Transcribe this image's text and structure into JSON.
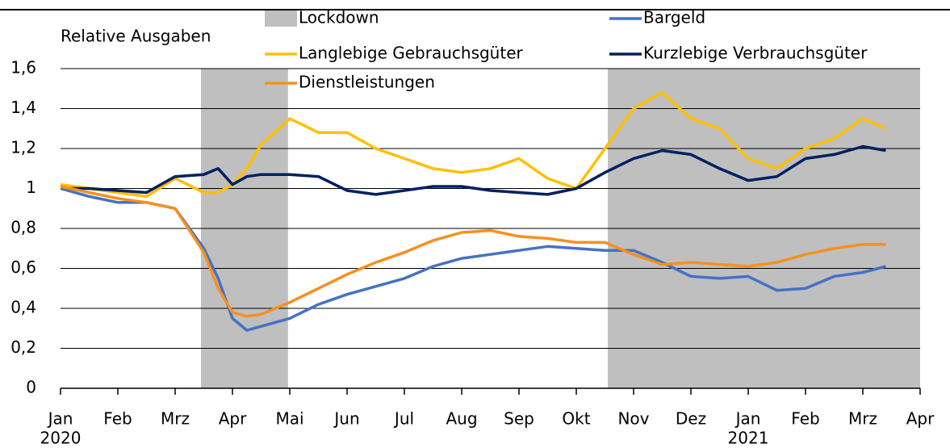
{
  "chart_data": {
    "type": "line",
    "y_label": "Relative Ausgaben",
    "x": [
      0,
      0.5,
      1,
      1.5,
      2,
      2.5,
      2.75,
      3,
      3.25,
      3.5,
      4,
      4.5,
      5,
      5.5,
      6,
      6.5,
      7,
      7.5,
      8,
      8.5,
      9,
      9.5,
      10,
      10.5,
      11,
      11.5,
      12,
      12.5,
      13,
      13.5,
      14,
      14.4
    ],
    "series": [
      {
        "name": "Bargeld",
        "color": "#4472c4",
        "values": [
          1.0,
          0.96,
          0.93,
          0.93,
          0.9,
          0.7,
          0.55,
          0.35,
          0.29,
          0.31,
          0.35,
          0.42,
          0.47,
          0.51,
          0.55,
          0.61,
          0.65,
          0.67,
          0.69,
          0.71,
          0.7,
          0.69,
          0.69,
          0.63,
          0.56,
          0.55,
          0.56,
          0.49,
          0.5,
          0.56,
          0.58,
          0.61
        ]
      },
      {
        "name": "Langlebige Gebrauchsgüter",
        "color": "#ffc000",
        "values": [
          1.02,
          1.0,
          0.98,
          0.96,
          1.05,
          0.98,
          0.98,
          1.02,
          1.1,
          1.22,
          1.35,
          1.28,
          1.28,
          1.2,
          1.15,
          1.1,
          1.08,
          1.1,
          1.15,
          1.05,
          1.0,
          1.2,
          1.4,
          1.48,
          1.35,
          1.3,
          1.15,
          1.1,
          1.2,
          1.25,
          1.35,
          1.3
        ]
      },
      {
        "name": "Kurzlebige Verbrauchsgüter",
        "color": "#002060",
        "values": [
          1.0,
          1.0,
          0.99,
          0.98,
          1.06,
          1.07,
          1.1,
          1.02,
          1.06,
          1.07,
          1.07,
          1.06,
          0.99,
          0.97,
          0.99,
          1.01,
          1.01,
          0.99,
          0.98,
          0.97,
          1.0,
          1.08,
          1.15,
          1.19,
          1.17,
          1.1,
          1.04,
          1.06,
          1.15,
          1.17,
          1.21,
          1.19
        ]
      },
      {
        "name": "Dienstleistungen",
        "color": "#f7901e",
        "values": [
          1.01,
          0.98,
          0.95,
          0.93,
          0.9,
          0.68,
          0.5,
          0.38,
          0.36,
          0.37,
          0.43,
          0.5,
          0.57,
          0.63,
          0.68,
          0.74,
          0.78,
          0.79,
          0.76,
          0.75,
          0.73,
          0.73,
          0.67,
          0.62,
          0.63,
          0.62,
          0.61,
          0.63,
          0.67,
          0.7,
          0.72,
          0.72
        ]
      }
    ],
    "shaded_label": "Lockdown",
    "shaded_color": "#bfbfbf",
    "shaded_regions": [
      [
        2.45,
        3.97
      ],
      [
        9.55,
        15
      ]
    ],
    "xlim": [
      0,
      15
    ],
    "xticks": [
      {
        "value": 0,
        "label": "Jan"
      },
      {
        "value": 1,
        "label": "Feb"
      },
      {
        "value": 2,
        "label": "Mrz"
      },
      {
        "value": 3,
        "label": "Apr"
      },
      {
        "value": 4,
        "label": "Mai"
      },
      {
        "value": 5,
        "label": "Jun"
      },
      {
        "value": 6,
        "label": "Jul"
      },
      {
        "value": 7,
        "label": "Aug"
      },
      {
        "value": 8,
        "label": "Sep"
      },
      {
        "value": 9,
        "label": "Okt"
      },
      {
        "value": 10,
        "label": "Nov"
      },
      {
        "value": 11,
        "label": "Dez"
      },
      {
        "value": 12,
        "label": "Jan"
      },
      {
        "value": 13,
        "label": "Feb"
      },
      {
        "value": 14,
        "label": "Mrz"
      },
      {
        "value": 15,
        "label": "Apr"
      }
    ],
    "annotations": [
      {
        "text": "2020",
        "x": 0
      },
      {
        "text": "2021",
        "x": 12
      }
    ],
    "ylim": [
      0,
      1.6
    ],
    "yticks": [
      0,
      {
        "value": 0.2,
        "label": "0,2"
      },
      {
        "value": 0.4,
        "label": "0,4"
      },
      {
        "value": 0.6,
        "label": "0,6"
      },
      {
        "value": 0.8,
        "label": "0,8"
      },
      1,
      {
        "value": 1.2,
        "label": "1,2"
      },
      {
        "value": 1.4,
        "label": "1,4"
      },
      {
        "value": 1.6,
        "label": "1,6"
      }
    ],
    "grid": true
  }
}
